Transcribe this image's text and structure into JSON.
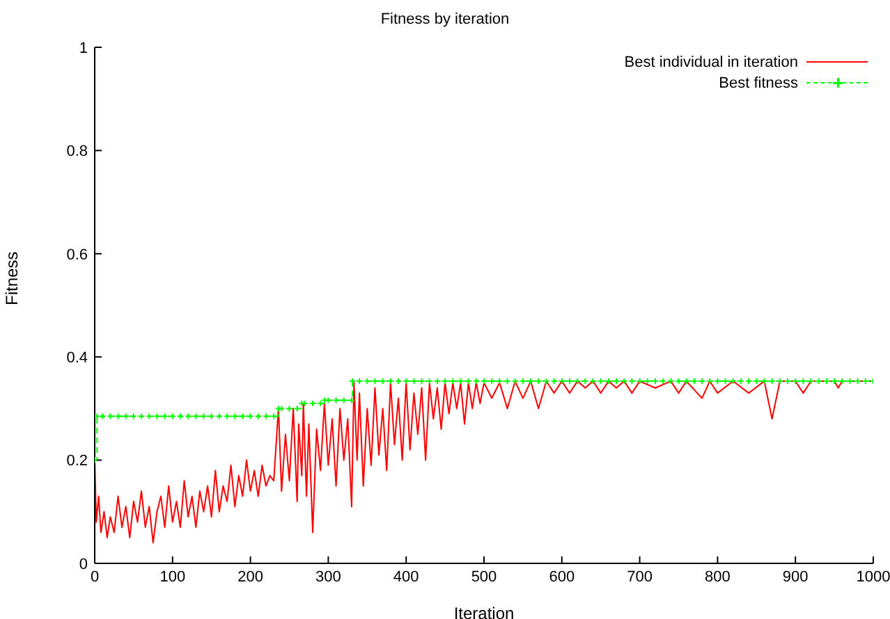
{
  "chart_data": {
    "type": "line",
    "title": "Fitness by iteration",
    "xlabel": "Iteration",
    "ylabel": "Fitness",
    "xlim": [
      0,
      1000
    ],
    "xticks": [
      0,
      100,
      200,
      300,
      400,
      500,
      600,
      700,
      800,
      900,
      1000
    ],
    "ylim": [
      0,
      1
    ],
    "yticks": [
      0,
      0.2,
      0.4,
      0.6,
      0.8,
      1
    ],
    "grid": false,
    "legend": "top right",
    "series": [
      {
        "name": "Best individual in iteration",
        "type": "line",
        "color": "#ff0000",
        "line_style": "solid",
        "marker": "none",
        "x": [
          0,
          2,
          5,
          8,
          12,
          16,
          20,
          25,
          30,
          35,
          40,
          45,
          50,
          55,
          60,
          65,
          70,
          75,
          80,
          85,
          90,
          95,
          100,
          105,
          110,
          115,
          120,
          125,
          130,
          135,
          140,
          145,
          150,
          155,
          160,
          165,
          170,
          175,
          180,
          185,
          190,
          195,
          200,
          205,
          210,
          215,
          220,
          225,
          230,
          236,
          240,
          245,
          250,
          255,
          260,
          262,
          266,
          268,
          272,
          275,
          280,
          285,
          290,
          295,
          300,
          305,
          310,
          315,
          320,
          325,
          330,
          333,
          337,
          340,
          345,
          350,
          355,
          360,
          365,
          370,
          375,
          380,
          385,
          390,
          395,
          400,
          405,
          410,
          415,
          420,
          425,
          430,
          435,
          440,
          445,
          450,
          455,
          460,
          465,
          470,
          475,
          480,
          485,
          490,
          495,
          500,
          510,
          520,
          530,
          540,
          550,
          560,
          570,
          580,
          590,
          600,
          610,
          620,
          630,
          640,
          650,
          660,
          670,
          680,
          690,
          700,
          720,
          740,
          750,
          760,
          780,
          790,
          800,
          820,
          840,
          860,
          870,
          880,
          900,
          910,
          920,
          950,
          955,
          960,
          1000
        ],
        "values": [
          0.2,
          0.08,
          0.13,
          0.06,
          0.1,
          0.05,
          0.09,
          0.06,
          0.13,
          0.07,
          0.11,
          0.05,
          0.12,
          0.08,
          0.14,
          0.07,
          0.11,
          0.04,
          0.1,
          0.13,
          0.07,
          0.15,
          0.08,
          0.12,
          0.07,
          0.16,
          0.09,
          0.13,
          0.07,
          0.14,
          0.1,
          0.15,
          0.09,
          0.18,
          0.1,
          0.15,
          0.12,
          0.19,
          0.11,
          0.17,
          0.13,
          0.2,
          0.14,
          0.18,
          0.13,
          0.19,
          0.15,
          0.17,
          0.16,
          0.3,
          0.14,
          0.25,
          0.16,
          0.3,
          0.12,
          0.27,
          0.17,
          0.31,
          0.13,
          0.27,
          0.06,
          0.26,
          0.18,
          0.31,
          0.19,
          0.28,
          0.15,
          0.3,
          0.2,
          0.28,
          0.11,
          0.35,
          0.2,
          0.33,
          0.15,
          0.3,
          0.19,
          0.34,
          0.21,
          0.3,
          0.18,
          0.35,
          0.23,
          0.32,
          0.2,
          0.35,
          0.22,
          0.33,
          0.25,
          0.34,
          0.2,
          0.35,
          0.28,
          0.34,
          0.26,
          0.35,
          0.29,
          0.35,
          0.3,
          0.35,
          0.27,
          0.35,
          0.3,
          0.35,
          0.31,
          0.35,
          0.32,
          0.35,
          0.3,
          0.353,
          0.32,
          0.353,
          0.3,
          0.353,
          0.33,
          0.353,
          0.33,
          0.353,
          0.34,
          0.353,
          0.33,
          0.353,
          0.34,
          0.353,
          0.33,
          0.353,
          0.34,
          0.353,
          0.33,
          0.353,
          0.32,
          0.353,
          0.33,
          0.353,
          0.33,
          0.353,
          0.28,
          0.353,
          0.353,
          0.33,
          0.353,
          0.353,
          0.34,
          0.353,
          0.353
        ]
      },
      {
        "name": "Best fitness",
        "type": "step",
        "color": "#00ff00",
        "line_style": "dashed",
        "marker": "cross",
        "x": [
          0,
          3,
          10,
          20,
          30,
          40,
          50,
          60,
          70,
          80,
          90,
          100,
          110,
          120,
          130,
          140,
          150,
          160,
          170,
          180,
          190,
          200,
          210,
          220,
          230,
          236,
          240,
          250,
          260,
          266,
          270,
          280,
          290,
          295,
          300,
          310,
          320,
          330,
          331,
          340,
          350,
          360,
          370,
          380,
          390,
          400,
          410,
          420,
          430,
          440,
          450,
          460,
          470,
          480,
          490,
          500,
          510,
          520,
          530,
          540,
          550,
          560,
          570,
          580,
          590,
          600,
          610,
          620,
          630,
          640,
          650,
          660,
          670,
          680,
          690,
          700,
          710,
          720,
          730,
          740,
          750,
          760,
          770,
          780,
          790,
          800,
          810,
          820,
          830,
          840,
          850,
          860,
          870,
          880,
          890,
          900,
          910,
          920,
          930,
          940,
          950,
          960,
          970,
          980,
          990,
          1000
        ],
        "values": [
          0.2,
          0.285,
          0.285,
          0.285,
          0.285,
          0.285,
          0.285,
          0.285,
          0.285,
          0.285,
          0.285,
          0.285,
          0.285,
          0.285,
          0.285,
          0.285,
          0.285,
          0.285,
          0.285,
          0.285,
          0.285,
          0.285,
          0.285,
          0.285,
          0.285,
          0.3,
          0.3,
          0.3,
          0.3,
          0.31,
          0.31,
          0.31,
          0.31,
          0.316,
          0.316,
          0.316,
          0.316,
          0.316,
          0.353,
          0.353,
          0.353,
          0.353,
          0.353,
          0.353,
          0.353,
          0.353,
          0.353,
          0.353,
          0.353,
          0.353,
          0.353,
          0.353,
          0.353,
          0.353,
          0.353,
          0.353,
          0.353,
          0.353,
          0.353,
          0.353,
          0.353,
          0.353,
          0.353,
          0.353,
          0.353,
          0.353,
          0.353,
          0.353,
          0.353,
          0.353,
          0.353,
          0.353,
          0.353,
          0.353,
          0.353,
          0.353,
          0.353,
          0.353,
          0.353,
          0.353,
          0.353,
          0.353,
          0.353,
          0.353,
          0.353,
          0.353,
          0.353,
          0.353,
          0.353,
          0.353,
          0.353,
          0.353,
          0.353,
          0.353,
          0.353,
          0.353,
          0.353,
          0.353,
          0.353,
          0.353,
          0.353,
          0.353,
          0.353,
          0.353,
          0.353,
          0.353
        ]
      }
    ]
  }
}
